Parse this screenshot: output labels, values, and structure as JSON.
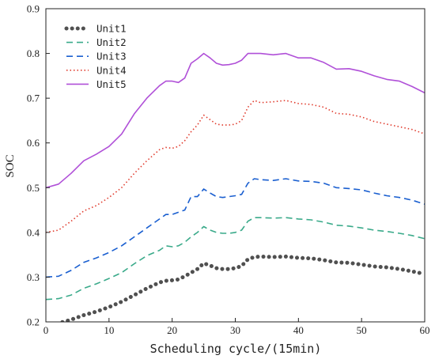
{
  "chart_data": {
    "type": "line",
    "xlabel": "Scheduling cycle/(15min)",
    "ylabel": "SOC",
    "xlim": [
      0,
      60
    ],
    "ylim": [
      0.2,
      0.9
    ],
    "xticks": [
      0,
      10,
      20,
      30,
      40,
      50,
      60
    ],
    "yticks": [
      0.2,
      0.3,
      0.4,
      0.5,
      0.6,
      0.7,
      0.8,
      0.9
    ],
    "x_tick_labels": [
      "0",
      "10",
      "20",
      "30",
      "40",
      "50",
      "60"
    ],
    "y_tick_labels": [
      "0.2",
      "0.3",
      "0.4",
      "0.5",
      "0.6",
      "0.7",
      "0.8",
      "0.9"
    ],
    "grid": false,
    "legend_position": "top-left",
    "series": [
      {
        "name": "Unit1",
        "color": "#505050",
        "style": "dotted-thick",
        "x": [
          0,
          2,
          4,
          6,
          8,
          10,
          12,
          14,
          16,
          18,
          19,
          20,
          21,
          22,
          23,
          24,
          25,
          26,
          27,
          28,
          29,
          30,
          31,
          32,
          33,
          34,
          36,
          38,
          40,
          42,
          44,
          46,
          48,
          50,
          52,
          54,
          56,
          58,
          60
        ],
        "y": [
          0.192,
          0.197,
          0.205,
          0.215,
          0.223,
          0.233,
          0.245,
          0.26,
          0.275,
          0.288,
          0.292,
          0.293,
          0.295,
          0.302,
          0.31,
          0.318,
          0.331,
          0.326,
          0.32,
          0.318,
          0.318,
          0.32,
          0.325,
          0.34,
          0.345,
          0.346,
          0.345,
          0.346,
          0.343,
          0.342,
          0.338,
          0.333,
          0.332,
          0.328,
          0.324,
          0.322,
          0.318,
          0.313,
          0.307
        ]
      },
      {
        "name": "Unit2",
        "color": "#3aaa8a",
        "style": "dashed",
        "x": [
          0,
          2,
          4,
          6,
          8,
          10,
          12,
          14,
          16,
          18,
          19,
          20,
          21,
          22,
          23,
          24,
          25,
          26,
          27,
          28,
          29,
          30,
          31,
          32,
          33,
          34,
          36,
          38,
          40,
          42,
          44,
          46,
          48,
          50,
          52,
          54,
          56,
          58,
          60
        ],
        "y": [
          0.25,
          0.252,
          0.26,
          0.275,
          0.285,
          0.297,
          0.31,
          0.33,
          0.348,
          0.36,
          0.37,
          0.368,
          0.37,
          0.378,
          0.39,
          0.4,
          0.413,
          0.405,
          0.4,
          0.398,
          0.398,
          0.4,
          0.405,
          0.425,
          0.433,
          0.433,
          0.432,
          0.433,
          0.43,
          0.428,
          0.423,
          0.416,
          0.414,
          0.41,
          0.405,
          0.402,
          0.398,
          0.393,
          0.386
        ]
      },
      {
        "name": "Unit3",
        "color": "#1a5fd0",
        "style": "dashed",
        "x": [
          0,
          2,
          4,
          6,
          8,
          10,
          12,
          14,
          16,
          18,
          19,
          20,
          21,
          22,
          23,
          24,
          25,
          26,
          27,
          28,
          29,
          30,
          31,
          32,
          33,
          34,
          36,
          38,
          40,
          42,
          44,
          46,
          48,
          50,
          52,
          54,
          56,
          58,
          60
        ],
        "y": [
          0.3,
          0.302,
          0.315,
          0.333,
          0.343,
          0.355,
          0.37,
          0.39,
          0.41,
          0.43,
          0.44,
          0.44,
          0.445,
          0.45,
          0.48,
          0.48,
          0.497,
          0.488,
          0.48,
          0.478,
          0.48,
          0.482,
          0.485,
          0.51,
          0.52,
          0.518,
          0.516,
          0.52,
          0.515,
          0.514,
          0.51,
          0.5,
          0.498,
          0.495,
          0.488,
          0.482,
          0.478,
          0.472,
          0.463
        ]
      },
      {
        "name": "Unit4",
        "color": "#e03a2c",
        "style": "dotted",
        "x": [
          0,
          2,
          4,
          6,
          8,
          10,
          12,
          14,
          16,
          18,
          19,
          20,
          21,
          22,
          23,
          24,
          25,
          26,
          27,
          28,
          29,
          30,
          31,
          32,
          33,
          34,
          36,
          38,
          40,
          42,
          44,
          46,
          48,
          50,
          52,
          54,
          56,
          58,
          60
        ],
        "y": [
          0.4,
          0.405,
          0.425,
          0.448,
          0.46,
          0.478,
          0.5,
          0.532,
          0.56,
          0.585,
          0.59,
          0.588,
          0.592,
          0.605,
          0.625,
          0.64,
          0.662,
          0.652,
          0.642,
          0.64,
          0.64,
          0.642,
          0.65,
          0.68,
          0.695,
          0.69,
          0.692,
          0.695,
          0.688,
          0.686,
          0.68,
          0.666,
          0.664,
          0.658,
          0.648,
          0.642,
          0.636,
          0.63,
          0.62
        ]
      },
      {
        "name": "Unit5",
        "color": "#b050d8",
        "style": "solid",
        "x": [
          0,
          2,
          4,
          6,
          8,
          10,
          12,
          14,
          16,
          18,
          19,
          20,
          21,
          22,
          23,
          24,
          25,
          26,
          27,
          28,
          29,
          30,
          31,
          32,
          33,
          34,
          36,
          38,
          40,
          42,
          44,
          46,
          48,
          50,
          52,
          54,
          56,
          58,
          60
        ],
        "y": [
          0.5,
          0.508,
          0.532,
          0.56,
          0.575,
          0.592,
          0.62,
          0.665,
          0.7,
          0.728,
          0.738,
          0.738,
          0.735,
          0.745,
          0.778,
          0.788,
          0.8,
          0.79,
          0.778,
          0.774,
          0.775,
          0.778,
          0.785,
          0.8,
          0.8,
          0.8,
          0.797,
          0.8,
          0.79,
          0.79,
          0.78,
          0.765,
          0.766,
          0.76,
          0.75,
          0.742,
          0.738,
          0.726,
          0.712
        ]
      }
    ]
  }
}
